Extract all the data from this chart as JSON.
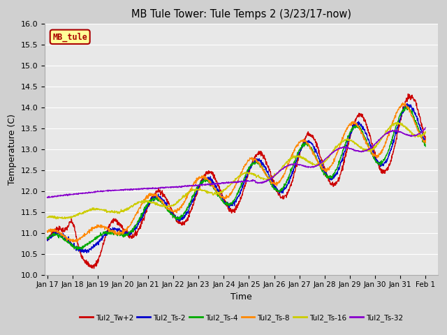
{
  "title": "MB Tule Tower: Tule Temps 2 (3/23/17-now)",
  "xlabel": "Time",
  "ylabel": "Temperature (C)",
  "ylim": [
    10.0,
    16.0
  ],
  "yticks": [
    10.0,
    10.5,
    11.0,
    11.5,
    12.0,
    12.5,
    13.0,
    13.5,
    14.0,
    14.5,
    15.0,
    15.5,
    16.0
  ],
  "xtick_labels": [
    "Jan 17",
    "Jan 18",
    "Jan 19",
    "Jan 20",
    "Jan 21",
    "Jan 22",
    "Jan 23",
    "Jan 24",
    "Jan 25",
    "Jan 26",
    "Jan 27",
    "Jan 28",
    "Jan 29",
    "Jan 30",
    "Jan 31",
    "Feb 1"
  ],
  "series_names": [
    "Tul2_Tw+2",
    "Tul2_Ts-2",
    "Tul2_Ts-4",
    "Tul2_Ts-8",
    "Tul2_Ts-16",
    "Tul2_Ts-32"
  ],
  "series_colors": [
    "#cc0000",
    "#0000cc",
    "#00aa00",
    "#ff8800",
    "#cccc00",
    "#8800cc"
  ],
  "line_width": 1.0,
  "plot_bg_color": "#e8e8e8",
  "fig_bg_color": "#d0d0d0",
  "grid_color": "#ffffff",
  "legend_box_fill": "#ffff99",
  "legend_box_edge": "#aa0000",
  "legend_box_text": "MB_tule",
  "legend_text_color": "#aa0000"
}
